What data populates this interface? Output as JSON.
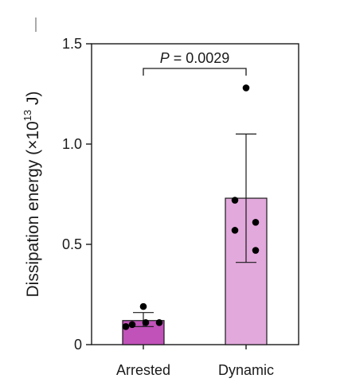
{
  "chart_data": {
    "type": "bar",
    "ylabel_main": "Dissipation energy (×10",
    "ylabel_exp": "13",
    "ylabel_unit": " J)",
    "ylim": [
      0,
      1.5
    ],
    "yticks": [
      {
        "value": 0,
        "label": "0"
      },
      {
        "value": 0.5,
        "label": "0.5"
      },
      {
        "value": 1.0,
        "label": "1.0"
      },
      {
        "value": 1.5,
        "label": "1.5"
      }
    ],
    "categories": [
      "Arrested",
      "Dynamic"
    ],
    "values": [
      0.12,
      0.73
    ],
    "errors": [
      [
        0.09,
        0.16
      ],
      [
        0.41,
        1.05
      ]
    ],
    "colors": [
      "#c152b9",
      "#e2a9dc"
    ],
    "points": [
      [
        0.09,
        0.1,
        0.11,
        0.11,
        0.19
      ],
      [
        1.28,
        0.72,
        0.61,
        0.57,
        0.47
      ]
    ],
    "annotation": {
      "p_label": "P",
      "p_value": " = 0.0029"
    },
    "grid": false
  }
}
